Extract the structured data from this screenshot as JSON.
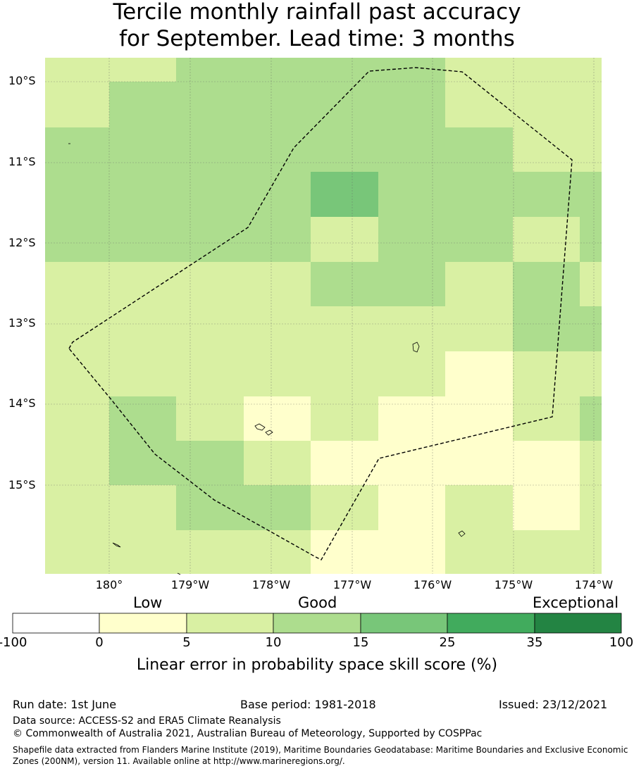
{
  "title": {
    "line1": "Tercile monthly rainfall past accuracy",
    "line2": "for September. Lead time: 3 months"
  },
  "map": {
    "lat_labels": [
      "10°S",
      "11°S",
      "12°S",
      "13°S",
      "14°S",
      "15°S"
    ],
    "lon_labels": [
      "180°",
      "179°W",
      "178°W",
      "177°W",
      "176°W",
      "175°W",
      "174°W"
    ],
    "colors": {
      "c0": "#ffffff",
      "c5": "#ffffcc",
      "c10": "#d9f0a3",
      "c15": "#addd8e",
      "c25": "#78c679",
      "c35": "#41ab5d",
      "c100": "#238443"
    },
    "grid_classes": [
      [
        "c10",
        "c10",
        "c15",
        "c15",
        "c15",
        "c15",
        "c10",
        "c10",
        "c10"
      ],
      [
        "c10",
        "c15",
        "c15",
        "c15",
        "c15",
        "c15",
        "c10",
        "c10",
        "c10"
      ],
      [
        "c15",
        "c15",
        "c15",
        "c15",
        "c15",
        "c15",
        "c15",
        "c10",
        "c10"
      ],
      [
        "c15",
        "c15",
        "c15",
        "c15",
        "c25",
        "c15",
        "c15",
        "c15",
        "c15"
      ],
      [
        "c15",
        "c15",
        "c15",
        "c15",
        "c10",
        "c15",
        "c15",
        "c10",
        "c15"
      ],
      [
        "c10",
        "c10",
        "c10",
        "c10",
        "c15",
        "c15",
        "c10",
        "c15",
        "c10"
      ],
      [
        "c10",
        "c10",
        "c10",
        "c10",
        "c10",
        "c10",
        "c10",
        "c15",
        "c15"
      ],
      [
        "c10",
        "c10",
        "c10",
        "c10",
        "c10",
        "c10",
        "c5",
        "c10",
        "c10"
      ],
      [
        "c10",
        "c15",
        "c10",
        "c5",
        "c10",
        "c5",
        "c5",
        "c10",
        "c15"
      ],
      [
        "c10",
        "c15",
        "c15",
        "c10",
        "c5",
        "c5",
        "c5",
        "c5",
        "c10"
      ],
      [
        "c10",
        "c10",
        "c15",
        "c15",
        "c10",
        "c5",
        "c10",
        "c5",
        "c10"
      ],
      [
        "c10",
        "c10",
        "c10",
        "c10",
        "c5",
        "c5",
        "c10",
        "c10",
        "c10"
      ]
    ]
  },
  "legend": {
    "categories": [
      "Low",
      "Good",
      "Exceptional"
    ],
    "ticks": [
      "-100",
      "0",
      "5",
      "10",
      "15",
      "25",
      "35",
      "100"
    ],
    "label": "Linear error in probability space skill score (%)"
  },
  "footer": {
    "run_date": "Run date: 1st June",
    "base_period": "Base period: 1981-2018",
    "issued": "Issued: 23/12/2021",
    "data_source": "Data source: ACCESS-S2 and ERA5 Climate Reanalysis",
    "copyright": "© Commonwealth of Australia 2021, Australian Bureau of Meteorology, Supported by COSPPac",
    "shapefile": "Shapefile data extracted from Flanders Marine Institute (2019), Maritime Boundaries Geodatabase: Maritime Boundaries and Exclusive Economic Zones (200NM), version 11. Available online at http://www.marineregions.org/."
  }
}
